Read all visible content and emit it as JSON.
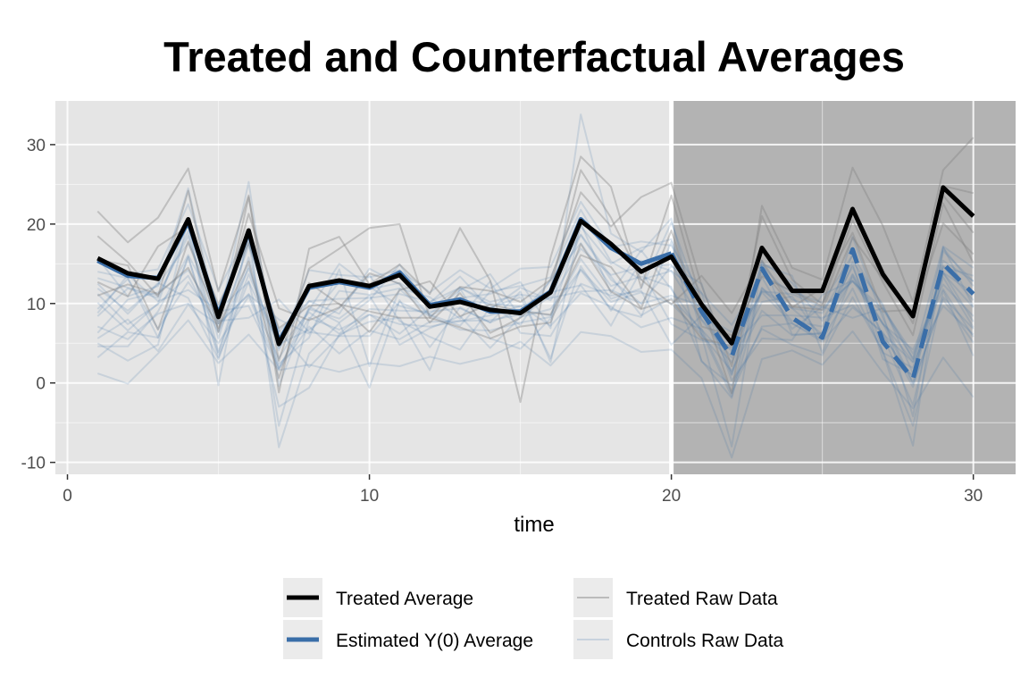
{
  "chart_data": {
    "type": "line",
    "title": "Treated and Counterfactual Averages",
    "xlabel": "time",
    "ylabel": "",
    "xlim": [
      -0.4,
      31.4
    ],
    "ylim": [
      -11.5,
      35.5
    ],
    "xticks": [
      0,
      10,
      20,
      30
    ],
    "yticks": [
      -10,
      0,
      10,
      20,
      30
    ],
    "treatment_start": 20,
    "x": [
      1,
      2,
      3,
      4,
      5,
      6,
      7,
      8,
      9,
      10,
      11,
      12,
      13,
      14,
      15,
      16,
      17,
      18,
      19,
      20,
      21,
      22,
      23,
      24,
      25,
      26,
      27,
      28,
      29,
      30
    ],
    "series": [
      {
        "name": "Treated Average",
        "color": "#000000",
        "values": [
          15.7,
          13.8,
          13.1,
          20.6,
          8.3,
          19.2,
          4.9,
          12.2,
          12.9,
          12.2,
          13.6,
          9.6,
          10.2,
          9.2,
          8.8,
          11.4,
          20.4,
          17.5,
          14.0,
          15.9,
          9.9,
          5.0,
          17.0,
          11.6,
          11.6,
          21.9,
          13.7,
          8.4,
          24.6,
          21.0
        ]
      },
      {
        "name": "Estimated Y(0) Average",
        "color": "#3a6ea8",
        "values": [
          15.4,
          13.5,
          13.2,
          20.3,
          8.6,
          19.0,
          5.2,
          12.0,
          12.7,
          12.0,
          13.9,
          9.8,
          10.5,
          9.0,
          9.0,
          11.5,
          20.6,
          17.0,
          15.0,
          16.3,
          9.0,
          3.3,
          14.4,
          8.2,
          5.7,
          16.8,
          5.2,
          0.5,
          15.0,
          11.2
        ]
      }
    ],
    "background_series": [
      {
        "name": "Treated Raw Data",
        "color": "#808080",
        "lines": [
          [
            21.6,
            17.7,
            20.8,
            27.0,
            11.5,
            23.6,
            -1.2,
            16.9,
            18.4,
            12.4,
            14.9,
            11.2,
            19.5,
            12.9,
            -2.4,
            15.8,
            28.5,
            24.7,
            12.0,
            23.6,
            10.1,
            -1.3,
            22.3,
            14.5,
            13.0,
            27.1,
            19.8,
            10.2,
            26.8,
            30.9
          ],
          [
            18.5,
            15.2,
            10.9,
            24.2,
            6.4,
            23.4,
            2.8,
            14.4,
            16.9,
            19.5,
            20.0,
            8.2,
            12.1,
            11.6,
            10.2,
            13.0,
            24.0,
            19.7,
            23.4,
            25.2,
            12.3,
            2.1,
            21.0,
            13.0,
            9.9,
            22.1,
            14.3,
            7.5,
            24.8,
            23.9
          ],
          [
            12.7,
            10.9,
            17.2,
            19.7,
            9.9,
            17.6,
            6.9,
            9.7,
            10.0,
            6.4,
            11.7,
            12.8,
            8.4,
            9.9,
            9.0,
            8.6,
            16.1,
            14.6,
            9.4,
            19.2,
            7.1,
            6.0,
            13.4,
            11.5,
            9.7,
            20.5,
            12.7,
            6.0,
            22.6,
            15.1
          ],
          [
            11.0,
            12.4,
            11.2,
            14.5,
            6.9,
            15.3,
            0.6,
            12.6,
            9.9,
            9.0,
            8.2,
            8.2,
            7.0,
            5.6,
            7.1,
            7.6,
            17.5,
            11.5,
            9.3,
            10.5,
            5.6,
            4.6,
            14.2,
            9.6,
            9.2,
            18.3,
            13.1,
            8.5,
            20.1,
            16.2
          ],
          [
            15.5,
            14.8,
            6.7,
            17.8,
            7.5,
            21.3,
            9.4,
            7.9,
            9.5,
            13.8,
            12.5,
            7.6,
            11.3,
            6.3,
            8.2,
            11.8,
            26.8,
            20.8,
            13.0,
            9.9,
            13.5,
            8.8,
            15.4,
            9.5,
            12.0,
            18.9,
            9.0,
            9.2,
            23.6,
            18.9
          ]
        ]
      },
      {
        "name": "Controls Raw Data",
        "color": "#3a6ea8",
        "lines": [
          [
            15.7,
            10.9,
            12.2,
            24.5,
            7.5,
            25.3,
            -0.4,
            9.6,
            7.6,
            10.4,
            14.9,
            9.5,
            10.7,
            11.2,
            12.7,
            6.9,
            33.8,
            18.8,
            16.5,
            20.7,
            6.0,
            -8.0,
            14.9,
            10.5,
            9.2,
            12.8,
            8.8,
            -4.2,
            16.6,
            12.8
          ],
          [
            5.0,
            2.8,
            4.8,
            20.7,
            -0.3,
            19.3,
            -8.1,
            3.7,
            7.5,
            -0.6,
            10.4,
            4.5,
            9.5,
            7.6,
            11.5,
            2.6,
            20.1,
            11.3,
            16.7,
            11.8,
            6.4,
            -1.7,
            15.4,
            6.1,
            6.2,
            16.2,
            3.9,
            -7.9,
            17.1,
            9.6
          ],
          [
            8.4,
            11.9,
            10.7,
            19.1,
            3.9,
            15.8,
            2.4,
            5.7,
            14.3,
            2.1,
            11.8,
            8.5,
            6.7,
            6.6,
            7.6,
            8.3,
            19.7,
            15.0,
            17.0,
            18.1,
            8.0,
            4.0,
            11.4,
            7.5,
            5.5,
            18.4,
            8.2,
            0.0,
            15.4,
            12.8
          ],
          [
            14.0,
            13.2,
            5.7,
            15.8,
            3.7,
            14.8,
            1.8,
            9.2,
            15.0,
            12.1,
            9.7,
            8.7,
            11.7,
            13.7,
            8.3,
            10.9,
            18.6,
            13.0,
            10.0,
            14.7,
            12.5,
            1.1,
            14.9,
            13.5,
            3.8,
            13.6,
            6.0,
            -2.8,
            13.9,
            7.7
          ],
          [
            10.1,
            6.6,
            10.0,
            20.6,
            6.5,
            17.3,
            6.6,
            2.0,
            5.9,
            8.6,
            6.2,
            9.4,
            12.0,
            9.8,
            7.3,
            13.0,
            18.7,
            13.4,
            8.5,
            10.7,
            6.7,
            2.6,
            10.2,
            10.9,
            5.5,
            11.9,
            3.8,
            1.9,
            14.6,
            13.5
          ],
          [
            4.6,
            4.6,
            9.0,
            16.1,
            9.0,
            9.7,
            1.7,
            7.1,
            3.7,
            6.6,
            5.5,
            7.7,
            7.8,
            7.9,
            8.6,
            12.9,
            17.6,
            12.2,
            13.4,
            12.1,
            2.8,
            -1.9,
            11.9,
            9.4,
            6.1,
            15.0,
            3.0,
            1.0,
            13.3,
            7.0
          ],
          [
            9.3,
            13.1,
            6.8,
            12.7,
            7.5,
            11.1,
            8.0,
            6.2,
            11.6,
            11.1,
            11.9,
            10.8,
            8.1,
            12.8,
            6.3,
            5.9,
            12.5,
            11.0,
            11.6,
            4.8,
            8.5,
            6.4,
            13.3,
            6.8,
            9.6,
            8.2,
            9.4,
            3.7,
            11.8,
            5.8
          ],
          [
            12.5,
            8.7,
            12.6,
            10.7,
            3.0,
            13.7,
            4.9,
            6.7,
            9.4,
            13.6,
            7.8,
            5.8,
            4.2,
            9.5,
            10.8,
            3.1,
            14.7,
            9.1,
            15.4,
            14.1,
            11.3,
            0.3,
            5.6,
            5.4,
            11.1,
            12.9,
            7.4,
            4.2,
            12.4,
            8.4
          ],
          [
            6.3,
            10.5,
            11.4,
            14.2,
            7.8,
            8.2,
            10.5,
            6.4,
            5.9,
            5.9,
            10.2,
            8.4,
            10.4,
            10.0,
            9.6,
            11.4,
            12.3,
            7.2,
            14.2,
            7.4,
            5.4,
            4.4,
            8.5,
            8.5,
            8.2,
            9.8,
            6.2,
            2.6,
            9.7,
            6.1
          ],
          [
            3.2,
            6.4,
            5.7,
            15.9,
            3.2,
            12.8,
            -3.0,
            -0.6,
            6.1,
            7.7,
            8.2,
            1.6,
            11.9,
            5.6,
            4.3,
            8.1,
            14.2,
            9.3,
            8.3,
            17.8,
            2.7,
            -0.3,
            6.8,
            4.8,
            3.5,
            10.8,
            4.0,
            -5.4,
            11.6,
            3.4
          ],
          [
            15.3,
            13.7,
            14.3,
            22.5,
            11.7,
            19.1,
            4.1,
            14.2,
            13.6,
            13.3,
            14.2,
            11.4,
            14.2,
            11.9,
            14.4,
            14.6,
            22.8,
            17.1,
            17.8,
            17.3,
            11.3,
            7.3,
            13.6,
            11.5,
            10.1,
            16.1,
            9.6,
            3.1,
            17.2,
            14.5
          ],
          [
            7.1,
            5.5,
            8.7,
            10.0,
            7.3,
            11.2,
            3.1,
            9.3,
            8.1,
            11.0,
            4.8,
            6.9,
            8.4,
            4.4,
            8.3,
            9.3,
            14.3,
            10.2,
            11.4,
            10.0,
            6.1,
            1.5,
            9.1,
            6.0,
            6.3,
            13.3,
            7.5,
            -0.1,
            10.5,
            5.1
          ],
          [
            1.2,
            -0.1,
            3.7,
            7.9,
            2.5,
            6.1,
            1.6,
            2.3,
            1.4,
            2.5,
            2.1,
            3.3,
            2.4,
            3.3,
            5.2,
            2.2,
            6.4,
            5.9,
            3.9,
            4.2,
            0.6,
            -9.4,
            3.0,
            4.1,
            2.3,
            6.5,
            1.3,
            -3.2,
            3.2,
            -1.8
          ],
          [
            11.9,
            9.1,
            12.4,
            17.6,
            9.6,
            17.8,
            -5.4,
            8.0,
            12.7,
            11.8,
            12.6,
            10.1,
            13.4,
            9.3,
            12.0,
            10.4,
            16.9,
            13.6,
            14.6,
            14.9,
            9.1,
            4.7,
            11.6,
            9.4,
            8.8,
            15.3,
            9.9,
            1.2,
            14.7,
            10.4
          ],
          [
            11.2,
            7.4,
            9.9,
            13.5,
            6.4,
            14.4,
            4.4,
            8.9,
            6.2,
            9.3,
            9.1,
            9.0,
            9.4,
            7.6,
            9.2,
            8.5,
            15.6,
            10.6,
            11.9,
            20.2,
            9.7,
            1.0,
            12.0,
            7.8,
            7.1,
            13.7,
            7.5,
            2.7,
            13.8,
            9.5
          ],
          [
            8.8,
            13.6,
            10.3,
            11.7,
            9.2,
            12.7,
            4.9,
            10.3,
            10.6,
            10.7,
            11.2,
            10.2,
            12.0,
            10.2,
            11.1,
            10.7,
            11.5,
            11.7,
            10.0,
            11.0,
            9.7,
            4.8,
            11.5,
            11.2,
            9.5,
            12.8,
            9.3,
            3.0,
            13.9,
            11.3
          ],
          [
            5.6,
            8.0,
            4.0,
            9.9,
            5.0,
            10.9,
            1.9,
            8.2,
            6.7,
            8.6,
            7.4,
            7.1,
            7.8,
            8.5,
            9.7,
            7.2,
            11.3,
            9.6,
            7.0,
            8.2,
            6.8,
            -1.2,
            7.1,
            7.5,
            5.2,
            9.5,
            6.4,
            -0.5,
            10.8,
            6.8
          ],
          [
            13.2,
            12.0,
            11.0,
            18.5,
            5.6,
            17.8,
            6.5,
            10.3,
            8.7,
            14.4,
            12.4,
            8.6,
            7.2,
            11.5,
            12.2,
            13.3,
            21.8,
            15.3,
            13.0,
            14.1,
            7.9,
            3.2,
            15.2,
            12.6,
            7.8,
            14.6,
            5.9,
            0.7,
            17.0,
            12.2
          ]
        ]
      }
    ],
    "legend": {
      "position": "bottom",
      "entries": [
        {
          "label": "Treated Average"
        },
        {
          "label": "Estimated Y(0) Average"
        },
        {
          "label": "Treated Raw Data"
        },
        {
          "label": "Controls Raw Data"
        }
      ]
    },
    "colors": {
      "panel_pre": "#e5e5e5",
      "panel_post": "#b3b3b3",
      "treated_avg": "#000000",
      "y0_avg": "#3a6ea8",
      "treated_raw": "#808080",
      "controls_raw": "#3a6ea8"
    }
  }
}
